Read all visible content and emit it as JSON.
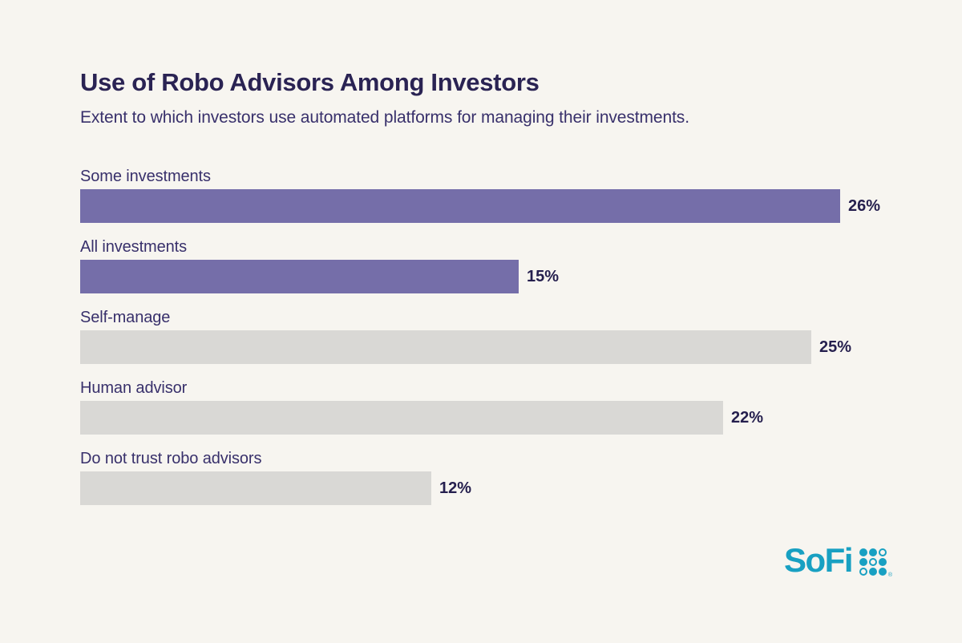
{
  "page": {
    "title": "Use of Robo Advisors Among Investors",
    "subtitle": "Extent to which investors use automated platforms for managing their investments."
  },
  "chart_data": {
    "type": "bar",
    "orientation": "horizontal",
    "title": "Use of Robo Advisors Among Investors",
    "subtitle": "Extent to which investors use automated platforms for managing their investments.",
    "categories": [
      "Some investments",
      "All investments",
      "Self-manage",
      "Human advisor",
      "Do not trust robo advisors"
    ],
    "values": [
      26,
      15,
      25,
      22,
      12
    ],
    "value_labels": [
      "26%",
      "15%",
      "25%",
      "22%",
      "12%"
    ],
    "bar_colors": [
      "#756EA9",
      "#756EA9",
      "#D9D8D5",
      "#D9D8D5",
      "#D9D8D5"
    ],
    "value_suffix": "%",
    "xlabel": "",
    "ylabel": "",
    "xlim": [
      0,
      26
    ],
    "grid": false,
    "legend": "none",
    "value_label_position": "right-of-bar",
    "category_label_position": "above-bar"
  },
  "branding": {
    "logo_text": "SoFi",
    "registered_mark": "®",
    "logo_grid": [
      "filled",
      "filled",
      "ring",
      "filled",
      "ring",
      "filled",
      "ring",
      "filled",
      "filled"
    ]
  },
  "colors": {
    "background": "#F7F5F0",
    "title_text": "#2A2353",
    "subtitle_text": "#38306B",
    "value_text": "#251F4E",
    "bar_purple": "#756EA9",
    "bar_gray": "#D9D8D5",
    "brand_teal": "#18A0C2"
  }
}
